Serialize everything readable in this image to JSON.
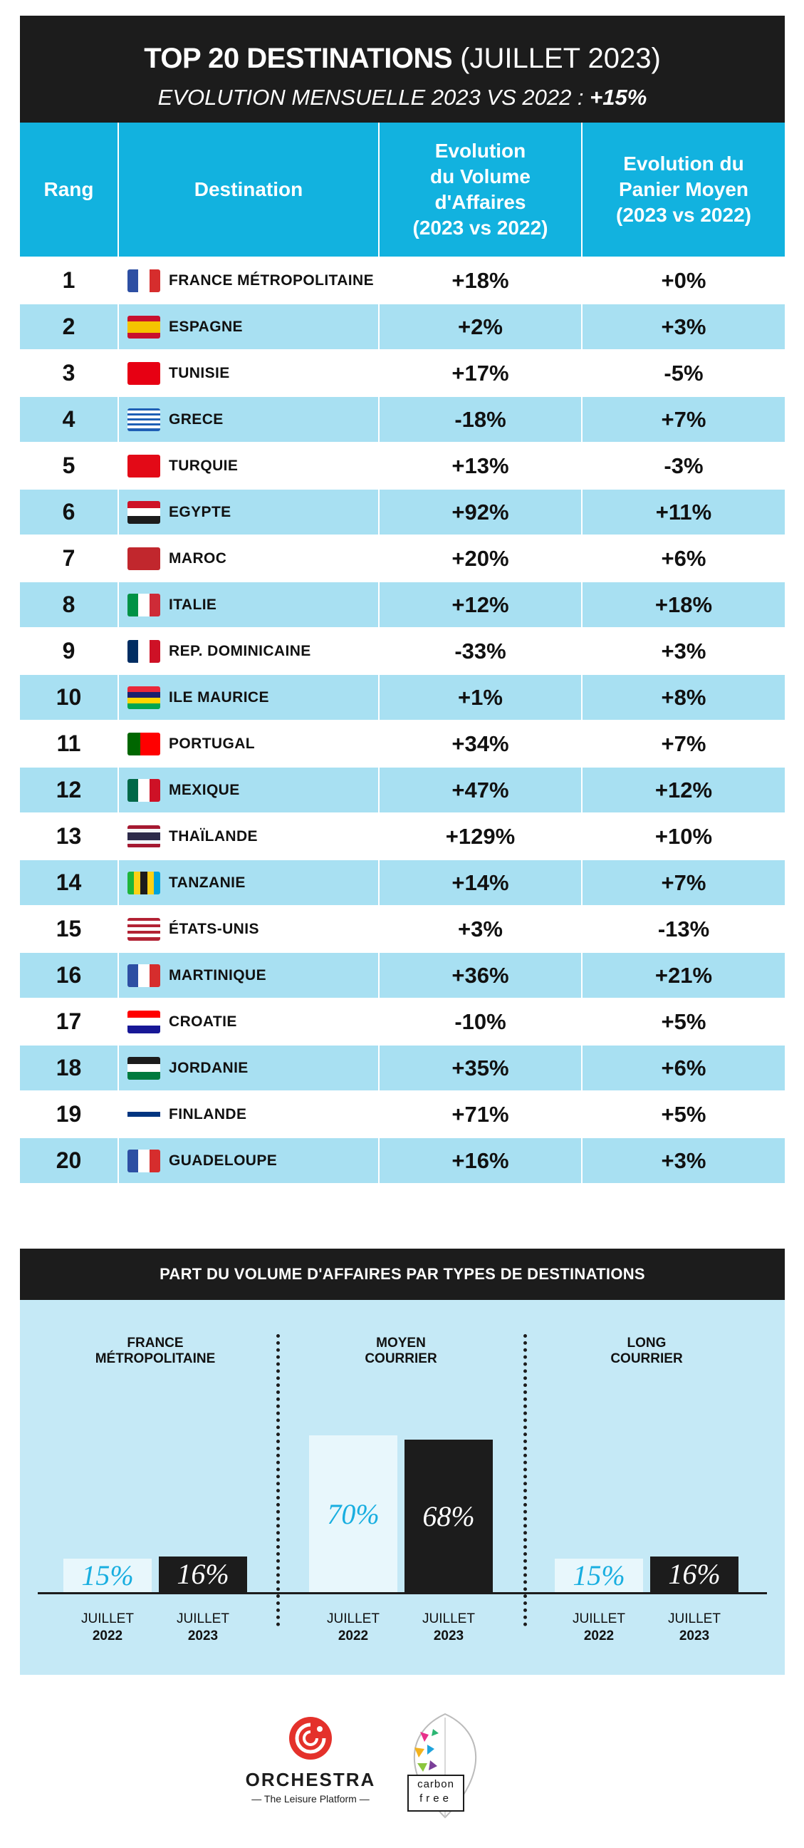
{
  "header": {
    "title_bold": "TOP 20 DESTINATIONS",
    "title_regular": "(JUILLET 2023)",
    "subtitle_prefix": "EVOLUTION MENSUELLE 2023 VS 2022 :",
    "subtitle_value": "+15%"
  },
  "table_headers": {
    "rank": "Rang",
    "destination": "Destination",
    "volume": "Evolution\ndu Volume\nd'Affaires\n(2023 vs 2022)",
    "panier": "Evolution du\nPanier Moyen\n(2023 vs 2022)"
  },
  "rows": [
    {
      "rank": "1",
      "destination": "FRANCE MÉTROPOLITAINE",
      "flag": "france-flag-icon",
      "volume": "+18%",
      "panier": "+0%"
    },
    {
      "rank": "2",
      "destination": "ESPAGNE",
      "flag": "spain-flag-icon",
      "volume": "+2%",
      "panier": "+3%"
    },
    {
      "rank": "3",
      "destination": "TUNISIE",
      "flag": "tunisia-flag-icon",
      "volume": "+17%",
      "panier": "-5%"
    },
    {
      "rank": "4",
      "destination": "GRECE",
      "flag": "greece-flag-icon",
      "volume": "-18%",
      "panier": "+7%"
    },
    {
      "rank": "5",
      "destination": "TURQUIE",
      "flag": "turkey-flag-icon",
      "volume": "+13%",
      "panier": "-3%"
    },
    {
      "rank": "6",
      "destination": "EGYPTE",
      "flag": "egypt-flag-icon",
      "volume": "+92%",
      "panier": "+11%"
    },
    {
      "rank": "7",
      "destination": "MAROC",
      "flag": "morocco-flag-icon",
      "volume": "+20%",
      "panier": "+6%"
    },
    {
      "rank": "8",
      "destination": "ITALIE",
      "flag": "italy-flag-icon",
      "volume": "+12%",
      "panier": "+18%"
    },
    {
      "rank": "9",
      "destination": "REP. DOMINICAINE",
      "flag": "dominican-republic-flag-icon",
      "volume": "-33%",
      "panier": "+3%"
    },
    {
      "rank": "10",
      "destination": "ILE MAURICE",
      "flag": "mauritius-flag-icon",
      "volume": "+1%",
      "panier": "+8%"
    },
    {
      "rank": "11",
      "destination": "PORTUGAL",
      "flag": "portugal-flag-icon",
      "volume": "+34%",
      "panier": "+7%"
    },
    {
      "rank": "12",
      "destination": "MEXIQUE",
      "flag": "mexico-flag-icon",
      "volume": "+47%",
      "panier": "+12%"
    },
    {
      "rank": "13",
      "destination": "THAÏLANDE",
      "flag": "thailand-flag-icon",
      "volume": "+129%",
      "panier": "+10%"
    },
    {
      "rank": "14",
      "destination": "TANZANIE",
      "flag": "tanzania-flag-icon",
      "volume": "+14%",
      "panier": "+7%"
    },
    {
      "rank": "15",
      "destination": "ÉTATS-UNIS",
      "flag": "usa-flag-icon",
      "volume": "+3%",
      "panier": "-13%"
    },
    {
      "rank": "16",
      "destination": "MARTINIQUE",
      "flag": "france-flag-icon",
      "volume": "+36%",
      "panier": "+21%"
    },
    {
      "rank": "17",
      "destination": "CROATIE",
      "flag": "croatia-flag-icon",
      "volume": "-10%",
      "panier": "+5%"
    },
    {
      "rank": "18",
      "destination": "JORDANIE",
      "flag": "jordan-flag-icon",
      "volume": "+35%",
      "panier": "+6%"
    },
    {
      "rank": "19",
      "destination": "FINLANDE",
      "flag": "finland-flag-icon",
      "volume": "+71%",
      "panier": "+5%"
    },
    {
      "rank": "20",
      "destination": "GUADELOUPE",
      "flag": "france-flag-icon",
      "volume": "+16%",
      "panier": "+3%"
    }
  ],
  "chart_data": {
    "type": "bar",
    "title": "PART DU VOLUME D'AFFAIRES PAR TYPES DE DESTINATIONS",
    "categories": [
      "FRANCE\nMÉTROPOLITAINE",
      "MOYEN\nCOURRIER",
      "LONG\nCOURRIER"
    ],
    "series": [
      {
        "name_month": "JUILLET",
        "name_year": "2022",
        "values": [
          15,
          70,
          15
        ],
        "labels": [
          "15%",
          "70%",
          "15%"
        ],
        "color": "#e8f7fc",
        "text_color": "#18aee0"
      },
      {
        "name_month": "JUILLET",
        "name_year": "2023",
        "values": [
          16,
          68,
          16
        ],
        "labels": [
          "16%",
          "68%",
          "16%"
        ],
        "color": "#1c1c1c",
        "text_color": "#ffffff"
      }
    ],
    "ylim": [
      0,
      100
    ]
  },
  "colors": {
    "header_bg": "#1c1c1c",
    "table_head": "#12b2df",
    "row_alt": "#a8e0f2",
    "panel_bg": "#c5e9f6"
  },
  "logos": {
    "orchestra_name": "ORCHESTRA",
    "orchestra_tagline": "— The Leisure Platform —",
    "carbon_line1": "carbon",
    "carbon_line2": "free"
  }
}
